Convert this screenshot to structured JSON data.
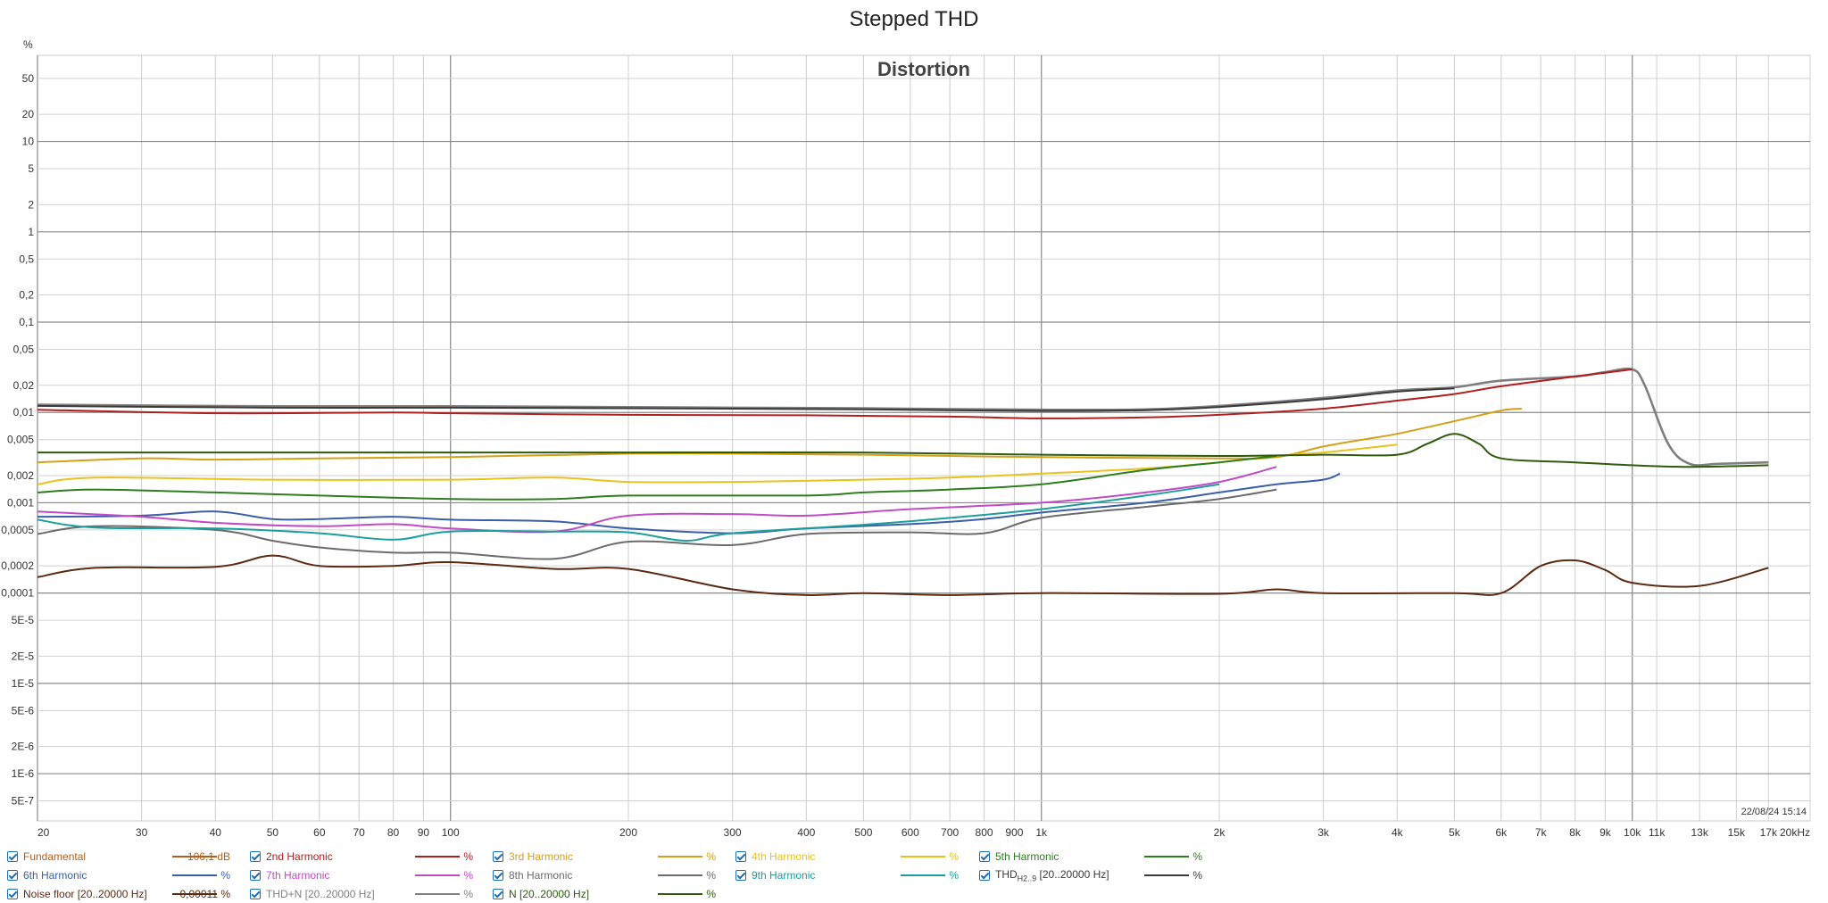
{
  "title": "Stepped THD",
  "chart_data": {
    "type": "line",
    "title": "Distortion",
    "ylabel": "%",
    "xlabel": "",
    "x_scale": "log",
    "y_scale": "log",
    "xlim": [
      20,
      20000
    ],
    "ylim": [
      3e-07,
      90
    ],
    "timestamp": "22/08/24 15:14",
    "x_ticks": [
      {
        "v": 20,
        "l": "20",
        "major": true
      },
      {
        "v": 30,
        "l": "30"
      },
      {
        "v": 40,
        "l": "40"
      },
      {
        "v": 50,
        "l": "50"
      },
      {
        "v": 60,
        "l": "60"
      },
      {
        "v": 70,
        "l": "70"
      },
      {
        "v": 80,
        "l": "80"
      },
      {
        "v": 90,
        "l": "90"
      },
      {
        "v": 100,
        "l": "100",
        "major": true
      },
      {
        "v": 200,
        "l": "200"
      },
      {
        "v": 300,
        "l": "300"
      },
      {
        "v": 400,
        "l": "400"
      },
      {
        "v": 500,
        "l": "500"
      },
      {
        "v": 600,
        "l": "600"
      },
      {
        "v": 700,
        "l": "700"
      },
      {
        "v": 800,
        "l": "800"
      },
      {
        "v": 900,
        "l": "900"
      },
      {
        "v": 1000,
        "l": "1k",
        "major": true
      },
      {
        "v": 2000,
        "l": "2k"
      },
      {
        "v": 3000,
        "l": "3k"
      },
      {
        "v": 4000,
        "l": "4k"
      },
      {
        "v": 5000,
        "l": "5k"
      },
      {
        "v": 6000,
        "l": "6k"
      },
      {
        "v": 7000,
        "l": "7k"
      },
      {
        "v": 8000,
        "l": "8k"
      },
      {
        "v": 9000,
        "l": "9k"
      },
      {
        "v": 10000,
        "l": "10k",
        "major": true
      },
      {
        "v": 11000,
        "l": "11k"
      },
      {
        "v": 13000,
        "l": "13k"
      },
      {
        "v": 15000,
        "l": "15k"
      },
      {
        "v": 17000,
        "l": "17k"
      },
      {
        "v": 20000,
        "l": "20kHz"
      }
    ],
    "y_ticks": [
      {
        "v": 50,
        "l": "50"
      },
      {
        "v": 20,
        "l": "20"
      },
      {
        "v": 10,
        "l": "10",
        "major": true
      },
      {
        "v": 5,
        "l": "5"
      },
      {
        "v": 2,
        "l": "2"
      },
      {
        "v": 1,
        "l": "1",
        "major": true
      },
      {
        "v": 0.5,
        "l": "0,5"
      },
      {
        "v": 0.2,
        "l": "0,2"
      },
      {
        "v": 0.1,
        "l": "0,1",
        "major": true
      },
      {
        "v": 0.05,
        "l": "0,05"
      },
      {
        "v": 0.02,
        "l": "0,02"
      },
      {
        "v": 0.01,
        "l": "0,01",
        "major": true
      },
      {
        "v": 0.005,
        "l": "0,005"
      },
      {
        "v": 0.002,
        "l": "0,002"
      },
      {
        "v": 0.001,
        "l": "0,001",
        "major": true
      },
      {
        "v": 0.0005,
        "l": "0,0005"
      },
      {
        "v": 0.0002,
        "l": "0,0002"
      },
      {
        "v": 0.0001,
        "l": "0,0001",
        "major": true
      },
      {
        "v": 5e-05,
        "l": "5E-5"
      },
      {
        "v": 2e-05,
        "l": "2E-5"
      },
      {
        "v": 1e-05,
        "l": "1E-5",
        "major": true
      },
      {
        "v": 5e-06,
        "l": "5E-6"
      },
      {
        "v": 2e-06,
        "l": "2E-6"
      },
      {
        "v": 1e-06,
        "l": "1E-6",
        "major": true
      },
      {
        "v": 5e-07,
        "l": "5E-7"
      }
    ],
    "series": [
      {
        "name": "THD+N [20..20000 Hz]",
        "color": "#7f7f7f",
        "points": [
          [
            20,
            0.0122
          ],
          [
            50,
            0.0117
          ],
          [
            100,
            0.0117
          ],
          [
            300,
            0.0113
          ],
          [
            500,
            0.0111
          ],
          [
            1000,
            0.0107
          ],
          [
            1500,
            0.0108
          ],
          [
            2000,
            0.0118
          ],
          [
            3000,
            0.0145
          ],
          [
            4000,
            0.0175
          ],
          [
            5000,
            0.019
          ],
          [
            6000,
            0.0225
          ],
          [
            8000,
            0.025
          ],
          [
            9000,
            0.028
          ],
          [
            10000,
            0.03
          ],
          [
            10500,
            0.02
          ],
          [
            11500,
            0.0045
          ],
          [
            12500,
            0.0027
          ],
          [
            14000,
            0.0027
          ],
          [
            17000,
            0.0028
          ]
        ]
      },
      {
        "name": "THD H2..9 [20..20000 Hz]",
        "color": "#3a3a3a",
        "points": [
          [
            20,
            0.0118
          ],
          [
            50,
            0.0113
          ],
          [
            100,
            0.0113
          ],
          [
            300,
            0.011
          ],
          [
            500,
            0.0108
          ],
          [
            1000,
            0.0104
          ],
          [
            1500,
            0.0106
          ],
          [
            2000,
            0.0115
          ],
          [
            3000,
            0.014
          ],
          [
            4000,
            0.017
          ],
          [
            5000,
            0.0185
          ]
        ]
      },
      {
        "name": "2nd Harmonic",
        "color": "#b01f1f",
        "points": [
          [
            20,
            0.0107
          ],
          [
            40,
            0.0098
          ],
          [
            80,
            0.01
          ],
          [
            100,
            0.0098
          ],
          [
            200,
            0.0094
          ],
          [
            400,
            0.0093
          ],
          [
            700,
            0.009
          ],
          [
            1000,
            0.0086
          ],
          [
            1500,
            0.0088
          ],
          [
            2000,
            0.0094
          ],
          [
            3000,
            0.011
          ],
          [
            4000,
            0.0135
          ],
          [
            5000,
            0.016
          ],
          [
            6000,
            0.0195
          ],
          [
            8000,
            0.025
          ],
          [
            9000,
            0.0275
          ],
          [
            10000,
            0.03
          ]
        ]
      },
      {
        "name": "3rd Harmonic",
        "color": "#d4a017",
        "points": [
          [
            20,
            0.0028
          ],
          [
            30,
            0.0031
          ],
          [
            40,
            0.003
          ],
          [
            60,
            0.0031
          ],
          [
            100,
            0.0032
          ],
          [
            200,
            0.0035
          ],
          [
            300,
            0.0035
          ],
          [
            500,
            0.0034
          ],
          [
            1000,
            0.0032
          ],
          [
            2000,
            0.0031
          ],
          [
            2500,
            0.0032
          ],
          [
            3000,
            0.0042
          ],
          [
            3500,
            0.005
          ],
          [
            4000,
            0.0058
          ],
          [
            5000,
            0.008
          ],
          [
            6000,
            0.0105
          ],
          [
            6500,
            0.011
          ]
        ]
      },
      {
        "name": "4th Harmonic",
        "color": "#e8c31c",
        "points": [
          [
            20,
            0.0016
          ],
          [
            25,
            0.0019
          ],
          [
            50,
            0.0018
          ],
          [
            100,
            0.0018
          ],
          [
            150,
            0.0019
          ],
          [
            200,
            0.0017
          ],
          [
            300,
            0.0017
          ],
          [
            500,
            0.0018
          ],
          [
            700,
            0.0019
          ],
          [
            1000,
            0.0021
          ],
          [
            1500,
            0.0024
          ],
          [
            2000,
            0.0028
          ],
          [
            2500,
            0.0033
          ],
          [
            3000,
            0.0036
          ],
          [
            3500,
            0.004
          ],
          [
            4000,
            0.0044
          ]
        ]
      },
      {
        "name": "5th Harmonic",
        "color": "#2e7d1f",
        "points": [
          [
            20,
            0.0013
          ],
          [
            25,
            0.0014
          ],
          [
            40,
            0.0013
          ],
          [
            60,
            0.0012
          ],
          [
            100,
            0.0011
          ],
          [
            150,
            0.0011
          ],
          [
            200,
            0.0012
          ],
          [
            400,
            0.0012
          ],
          [
            500,
            0.0013
          ],
          [
            700,
            0.0014
          ],
          [
            1000,
            0.0016
          ],
          [
            1500,
            0.0023
          ],
          [
            2000,
            0.0028
          ],
          [
            2500,
            0.0033
          ]
        ]
      },
      {
        "name": "N [20..20000 Hz]",
        "color": "#2d5a0c",
        "points": [
          [
            20,
            0.0036
          ],
          [
            100,
            0.0036
          ],
          [
            200,
            0.0036
          ],
          [
            500,
            0.0036
          ],
          [
            1000,
            0.0034
          ],
          [
            2000,
            0.0033
          ],
          [
            3000,
            0.0034
          ],
          [
            4000,
            0.0034
          ],
          [
            4500,
            0.0045
          ],
          [
            5000,
            0.0058
          ],
          [
            5500,
            0.0045
          ],
          [
            6000,
            0.0031
          ],
          [
            8000,
            0.0028
          ],
          [
            10000,
            0.0026
          ],
          [
            12500,
            0.0025
          ],
          [
            17000,
            0.0026
          ]
        ]
      },
      {
        "name": "6th Harmonic",
        "color": "#3b5ea8",
        "points": [
          [
            20,
            0.0007
          ],
          [
            30,
            0.00072
          ],
          [
            40,
            0.0008
          ],
          [
            50,
            0.00066
          ],
          [
            60,
            0.00066
          ],
          [
            80,
            0.0007
          ],
          [
            100,
            0.00065
          ],
          [
            150,
            0.00062
          ],
          [
            200,
            0.00052
          ],
          [
            300,
            0.00046
          ],
          [
            400,
            0.00052
          ],
          [
            600,
            0.00058
          ],
          [
            800,
            0.00066
          ],
          [
            1000,
            0.00078
          ],
          [
            1500,
            0.001
          ],
          [
            2000,
            0.0013
          ],
          [
            2500,
            0.0016
          ],
          [
            3000,
            0.0018
          ],
          [
            3200,
            0.0021
          ]
        ]
      },
      {
        "name": "7th Harmonic",
        "color": "#c14bc6",
        "points": [
          [
            20,
            0.0008
          ],
          [
            30,
            0.0007
          ],
          [
            40,
            0.0006
          ],
          [
            60,
            0.00055
          ],
          [
            80,
            0.00058
          ],
          [
            100,
            0.00052
          ],
          [
            150,
            0.00048
          ],
          [
            200,
            0.00072
          ],
          [
            300,
            0.00075
          ],
          [
            400,
            0.00072
          ],
          [
            600,
            0.00085
          ],
          [
            1000,
            0.001
          ],
          [
            1500,
            0.0013
          ],
          [
            2000,
            0.0017
          ],
          [
            2500,
            0.0025
          ]
        ]
      },
      {
        "name": "8th Harmonic",
        "color": "#6b6b6b",
        "points": [
          [
            20,
            0.00045
          ],
          [
            25,
            0.00055
          ],
          [
            40,
            0.0005
          ],
          [
            50,
            0.00038
          ],
          [
            60,
            0.00032
          ],
          [
            80,
            0.00028
          ],
          [
            100,
            0.00028
          ],
          [
            150,
            0.00024
          ],
          [
            200,
            0.00037
          ],
          [
            300,
            0.00034
          ],
          [
            400,
            0.00045
          ],
          [
            600,
            0.00047
          ],
          [
            800,
            0.00046
          ],
          [
            1000,
            0.00068
          ],
          [
            1500,
            0.0009
          ],
          [
            2000,
            0.0011
          ],
          [
            2500,
            0.0014
          ]
        ]
      },
      {
        "name": "9th Harmonic",
        "color": "#1a9e9e",
        "points": [
          [
            20,
            0.00065
          ],
          [
            25,
            0.00053
          ],
          [
            40,
            0.00052
          ],
          [
            60,
            0.00046
          ],
          [
            80,
            0.00039
          ],
          [
            100,
            0.00048
          ],
          [
            150,
            0.00048
          ],
          [
            200,
            0.00047
          ],
          [
            250,
            0.00038
          ],
          [
            300,
            0.00046
          ],
          [
            500,
            0.00057
          ],
          [
            700,
            0.00068
          ],
          [
            1000,
            0.00085
          ],
          [
            1500,
            0.0012
          ],
          [
            2000,
            0.0016
          ]
        ]
      },
      {
        "name": "Noise floor [20..20000 Hz]",
        "color": "#5a2a12",
        "points": [
          [
            20,
            0.00015
          ],
          [
            25,
            0.00019
          ],
          [
            40,
            0.000195
          ],
          [
            50,
            0.00026
          ],
          [
            60,
            0.0002
          ],
          [
            80,
            0.0002
          ],
          [
            100,
            0.00022
          ],
          [
            150,
            0.000185
          ],
          [
            200,
            0.000185
          ],
          [
            300,
            0.00011
          ],
          [
            400,
            9.5e-05
          ],
          [
            500,
            0.0001
          ],
          [
            700,
            9.5e-05
          ],
          [
            1000,
            0.0001
          ],
          [
            2000,
            9.8e-05
          ],
          [
            2500,
            0.00011
          ],
          [
            3000,
            0.0001
          ],
          [
            5000,
            0.0001
          ],
          [
            6000,
            0.0001
          ],
          [
            7000,
            0.0002
          ],
          [
            8000,
            0.00023
          ],
          [
            9000,
            0.00018
          ],
          [
            10000,
            0.00013
          ],
          [
            13000,
            0.00012
          ],
          [
            17000,
            0.00019
          ]
        ]
      }
    ]
  },
  "legend": {
    "rows": [
      [
        {
          "label": "Fundamental",
          "color": "#b0601e",
          "value": "106,1 dB"
        },
        {
          "label": "2nd Harmonic",
          "color": "#b01f1f",
          "value": "%"
        },
        {
          "label": "3rd Harmonic",
          "color": "#d4a017",
          "value": "%"
        },
        {
          "label": "4th Harmonic",
          "color": "#e8c31c",
          "value": "%"
        },
        {
          "label": "5th Harmonic",
          "color": "#2e7d1f",
          "value": "%"
        }
      ],
      [
        {
          "label": "6th Harmonic",
          "color": "#3b5ea8",
          "value": "%"
        },
        {
          "label": "7th Harmonic",
          "color": "#c14bc6",
          "value": "%"
        },
        {
          "label": "8th Harmonic",
          "color": "#6b6b6b",
          "value": "%"
        },
        {
          "label": "9th Harmonic",
          "color": "#1a9e9e",
          "value": "%"
        },
        {
          "label": "THD",
          "sub": "H2..9",
          "suffix": " [20..20000 Hz]",
          "color": "#3a3a3a",
          "value": "%"
        }
      ],
      [
        {
          "label": "Noise floor [20..20000 Hz]",
          "color": "#5a2a12",
          "value": "0,00011 %"
        },
        {
          "label": "THD+N [20..20000 Hz]",
          "color": "#7f7f7f",
          "value": "%"
        },
        {
          "label": "N [20..20000 Hz]",
          "color": "#2d5a0c",
          "value": "%"
        }
      ]
    ]
  }
}
